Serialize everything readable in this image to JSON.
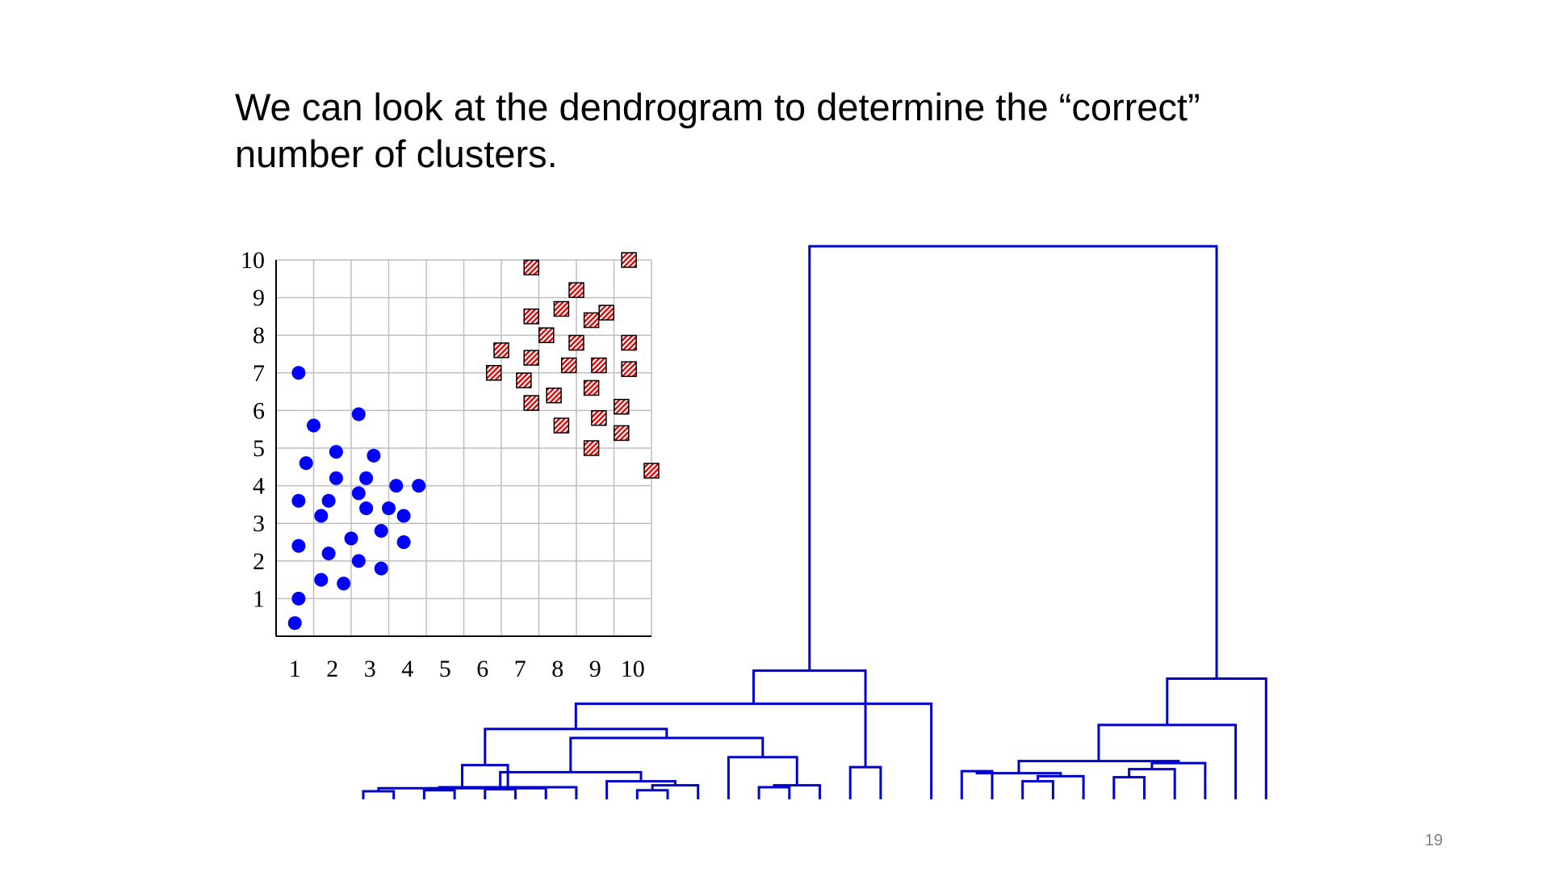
{
  "slide": {
    "title_line1": "We can look at the dendrogram to determine the “correct”",
    "title_line2": "number of clusters.",
    "page_number": "19"
  },
  "colors": {
    "circle": "#0000ff",
    "square_stripe": "#e00000",
    "dendrogram": "#0000cc",
    "grid": "#bfbfbf"
  },
  "chart_data": [
    {
      "type": "scatter",
      "title": "",
      "xlabel": "",
      "ylabel": "",
      "xlim": [
        0,
        10
      ],
      "ylim": [
        0,
        10
      ],
      "grid": true,
      "x_ticks": [
        "1",
        "2",
        "3",
        "4",
        "5",
        "6",
        "7",
        "8",
        "9",
        "10"
      ],
      "y_ticks": [
        "1",
        "2",
        "3",
        "4",
        "5",
        "6",
        "7",
        "8",
        "9",
        "10"
      ],
      "series": [
        {
          "marker": "circle",
          "points": [
            [
              0.6,
              7.0
            ],
            [
              1.0,
              5.6
            ],
            [
              2.2,
              5.9
            ],
            [
              0.8,
              4.6
            ],
            [
              1.6,
              4.9
            ],
            [
              2.6,
              4.8
            ],
            [
              0.6,
              3.6
            ],
            [
              1.6,
              4.2
            ],
            [
              2.4,
              4.2
            ],
            [
              3.2,
              4.0
            ],
            [
              3.8,
              4.0
            ],
            [
              2.2,
              3.8
            ],
            [
              1.4,
              3.6
            ],
            [
              2.4,
              3.4
            ],
            [
              3.0,
              3.4
            ],
            [
              1.2,
              3.2
            ],
            [
              3.4,
              3.2
            ],
            [
              2.8,
              2.8
            ],
            [
              2.0,
              2.6
            ],
            [
              0.6,
              2.4
            ],
            [
              3.4,
              2.5
            ],
            [
              1.4,
              2.2
            ],
            [
              2.2,
              2.0
            ],
            [
              2.8,
              1.8
            ],
            [
              1.2,
              1.5
            ],
            [
              1.8,
              1.4
            ],
            [
              0.6,
              1.0
            ],
            [
              0.5,
              0.35
            ]
          ]
        },
        {
          "marker": "hatched-square",
          "points": [
            [
              6.8,
              9.8
            ],
            [
              9.4,
              10.0
            ],
            [
              8.0,
              9.2
            ],
            [
              7.6,
              8.7
            ],
            [
              6.8,
              8.5
            ],
            [
              8.4,
              8.4
            ],
            [
              8.8,
              8.6
            ],
            [
              7.2,
              8.0
            ],
            [
              8.0,
              7.8
            ],
            [
              9.4,
              7.8
            ],
            [
              6.0,
              7.6
            ],
            [
              6.8,
              7.4
            ],
            [
              7.8,
              7.2
            ],
            [
              8.6,
              7.2
            ],
            [
              9.4,
              7.1
            ],
            [
              5.8,
              7.0
            ],
            [
              6.6,
              6.8
            ],
            [
              8.4,
              6.6
            ],
            [
              7.4,
              6.4
            ],
            [
              6.8,
              6.2
            ],
            [
              9.2,
              6.1
            ],
            [
              8.6,
              5.8
            ],
            [
              7.6,
              5.6
            ],
            [
              9.2,
              5.4
            ],
            [
              8.4,
              5.0
            ],
            [
              10.0,
              4.4
            ]
          ]
        }
      ]
    },
    {
      "type": "dendrogram",
      "ylim": [
        0,
        55
      ],
      "merges": [
        [
          0,
          1,
          0.8
        ],
        [
          2,
          3,
          0.9
        ],
        [
          4,
          5,
          1.0
        ],
        [
          6,
          30,
          1.1
        ],
        [
          31,
          7,
          1.2
        ],
        [
          9,
          10,
          0.9
        ],
        [
          11,
          35,
          1.4
        ],
        [
          8,
          36,
          1.8
        ],
        [
          32,
          37,
          2.7
        ],
        [
          13,
          14,
          1.2
        ],
        [
          15,
          39,
          1.4
        ],
        [
          12,
          40,
          4.2
        ],
        [
          16,
          17,
          3.2
        ],
        [
          38,
          41,
          6.1
        ],
        [
          33,
          34,
          3.4
        ],
        [
          43,
          44,
          7.0
        ],
        [
          18,
          45,
          9.5
        ],
        [
          42,
          46,
          12.8
        ],
        [
          19,
          20,
          2.8
        ],
        [
          21,
          22,
          1.8
        ],
        [
          23,
          49,
          2.3
        ],
        [
          48,
          50,
          2.6
        ],
        [
          24,
          25,
          2.2
        ],
        [
          26,
          52,
          3.0
        ],
        [
          27,
          53,
          3.6
        ],
        [
          51,
          54,
          3.8
        ],
        [
          28,
          55,
          7.4
        ],
        [
          29,
          56,
          12.0
        ],
        [
          47,
          57,
          55.0
        ]
      ]
    }
  ]
}
